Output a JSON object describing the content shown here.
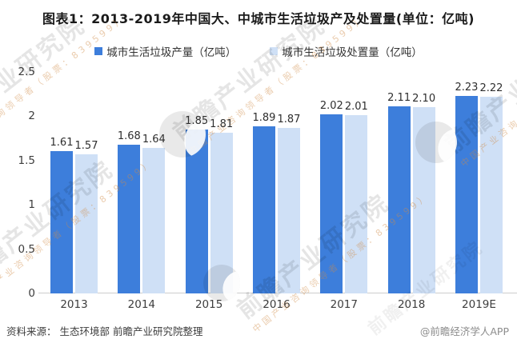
{
  "title": "图表1：2013-2019年中国大、中城市生活垃圾产及处置量(单位：亿吨)",
  "chart_data": {
    "type": "bar",
    "categories": [
      "2013",
      "2014",
      "2015",
      "2016",
      "2017",
      "2018",
      "2019E"
    ],
    "series": [
      {
        "name": "城市生活垃圾产量（亿吨）",
        "color": "#3D7EDB",
        "values": [
          1.61,
          1.68,
          1.85,
          1.89,
          2.02,
          2.11,
          2.23
        ]
      },
      {
        "name": "城市生活垃圾处置量（亿吨）",
        "color": "#CFE0F6",
        "values": [
          1.57,
          1.64,
          1.81,
          1.87,
          2.01,
          2.1,
          2.22
        ]
      }
    ],
    "ylim": [
      0,
      2.5
    ],
    "yticks": [
      0,
      0.5,
      1,
      1.5,
      2,
      2.5
    ],
    "grid": false,
    "legend_position": "top",
    "value_labels": true
  },
  "footer": {
    "source": "资料来源：  生态环境部 前瞻产业研究院整理",
    "brand": "@前瞻经济学人APP"
  },
  "watermark": {
    "text": "前瞻产业研究院",
    "subtext": "中国产业咨询领导者（股票：839599）"
  }
}
